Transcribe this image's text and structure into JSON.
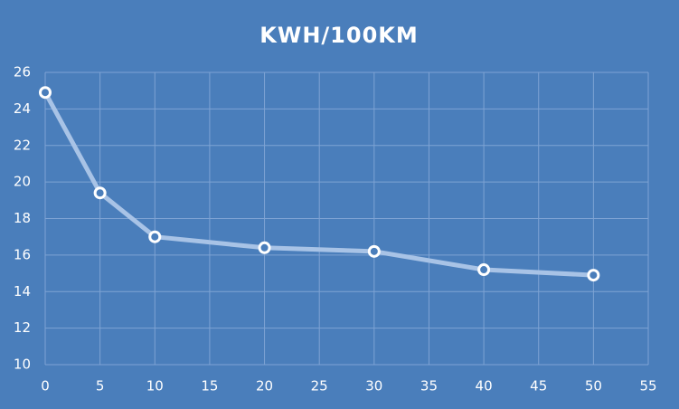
{
  "chart_data": {
    "type": "line",
    "title": "KWH/100KM",
    "background": "#4a7ebb",
    "x": [
      0,
      5,
      10,
      20,
      30,
      40,
      50
    ],
    "series": [
      {
        "color": "#a8c3e6",
        "values": [
          24.9,
          19.4,
          17.0,
          16.4,
          16.2,
          15.2,
          14.9
        ]
      }
    ],
    "xlim": [
      0,
      55
    ],
    "xticks": [
      0,
      5,
      10,
      15,
      20,
      25,
      30,
      35,
      40,
      45,
      50,
      55
    ],
    "ylim": [
      10,
      26
    ],
    "yticks": [
      10,
      12,
      14,
      16,
      18,
      20,
      22,
      24,
      26
    ],
    "grid": true
  }
}
